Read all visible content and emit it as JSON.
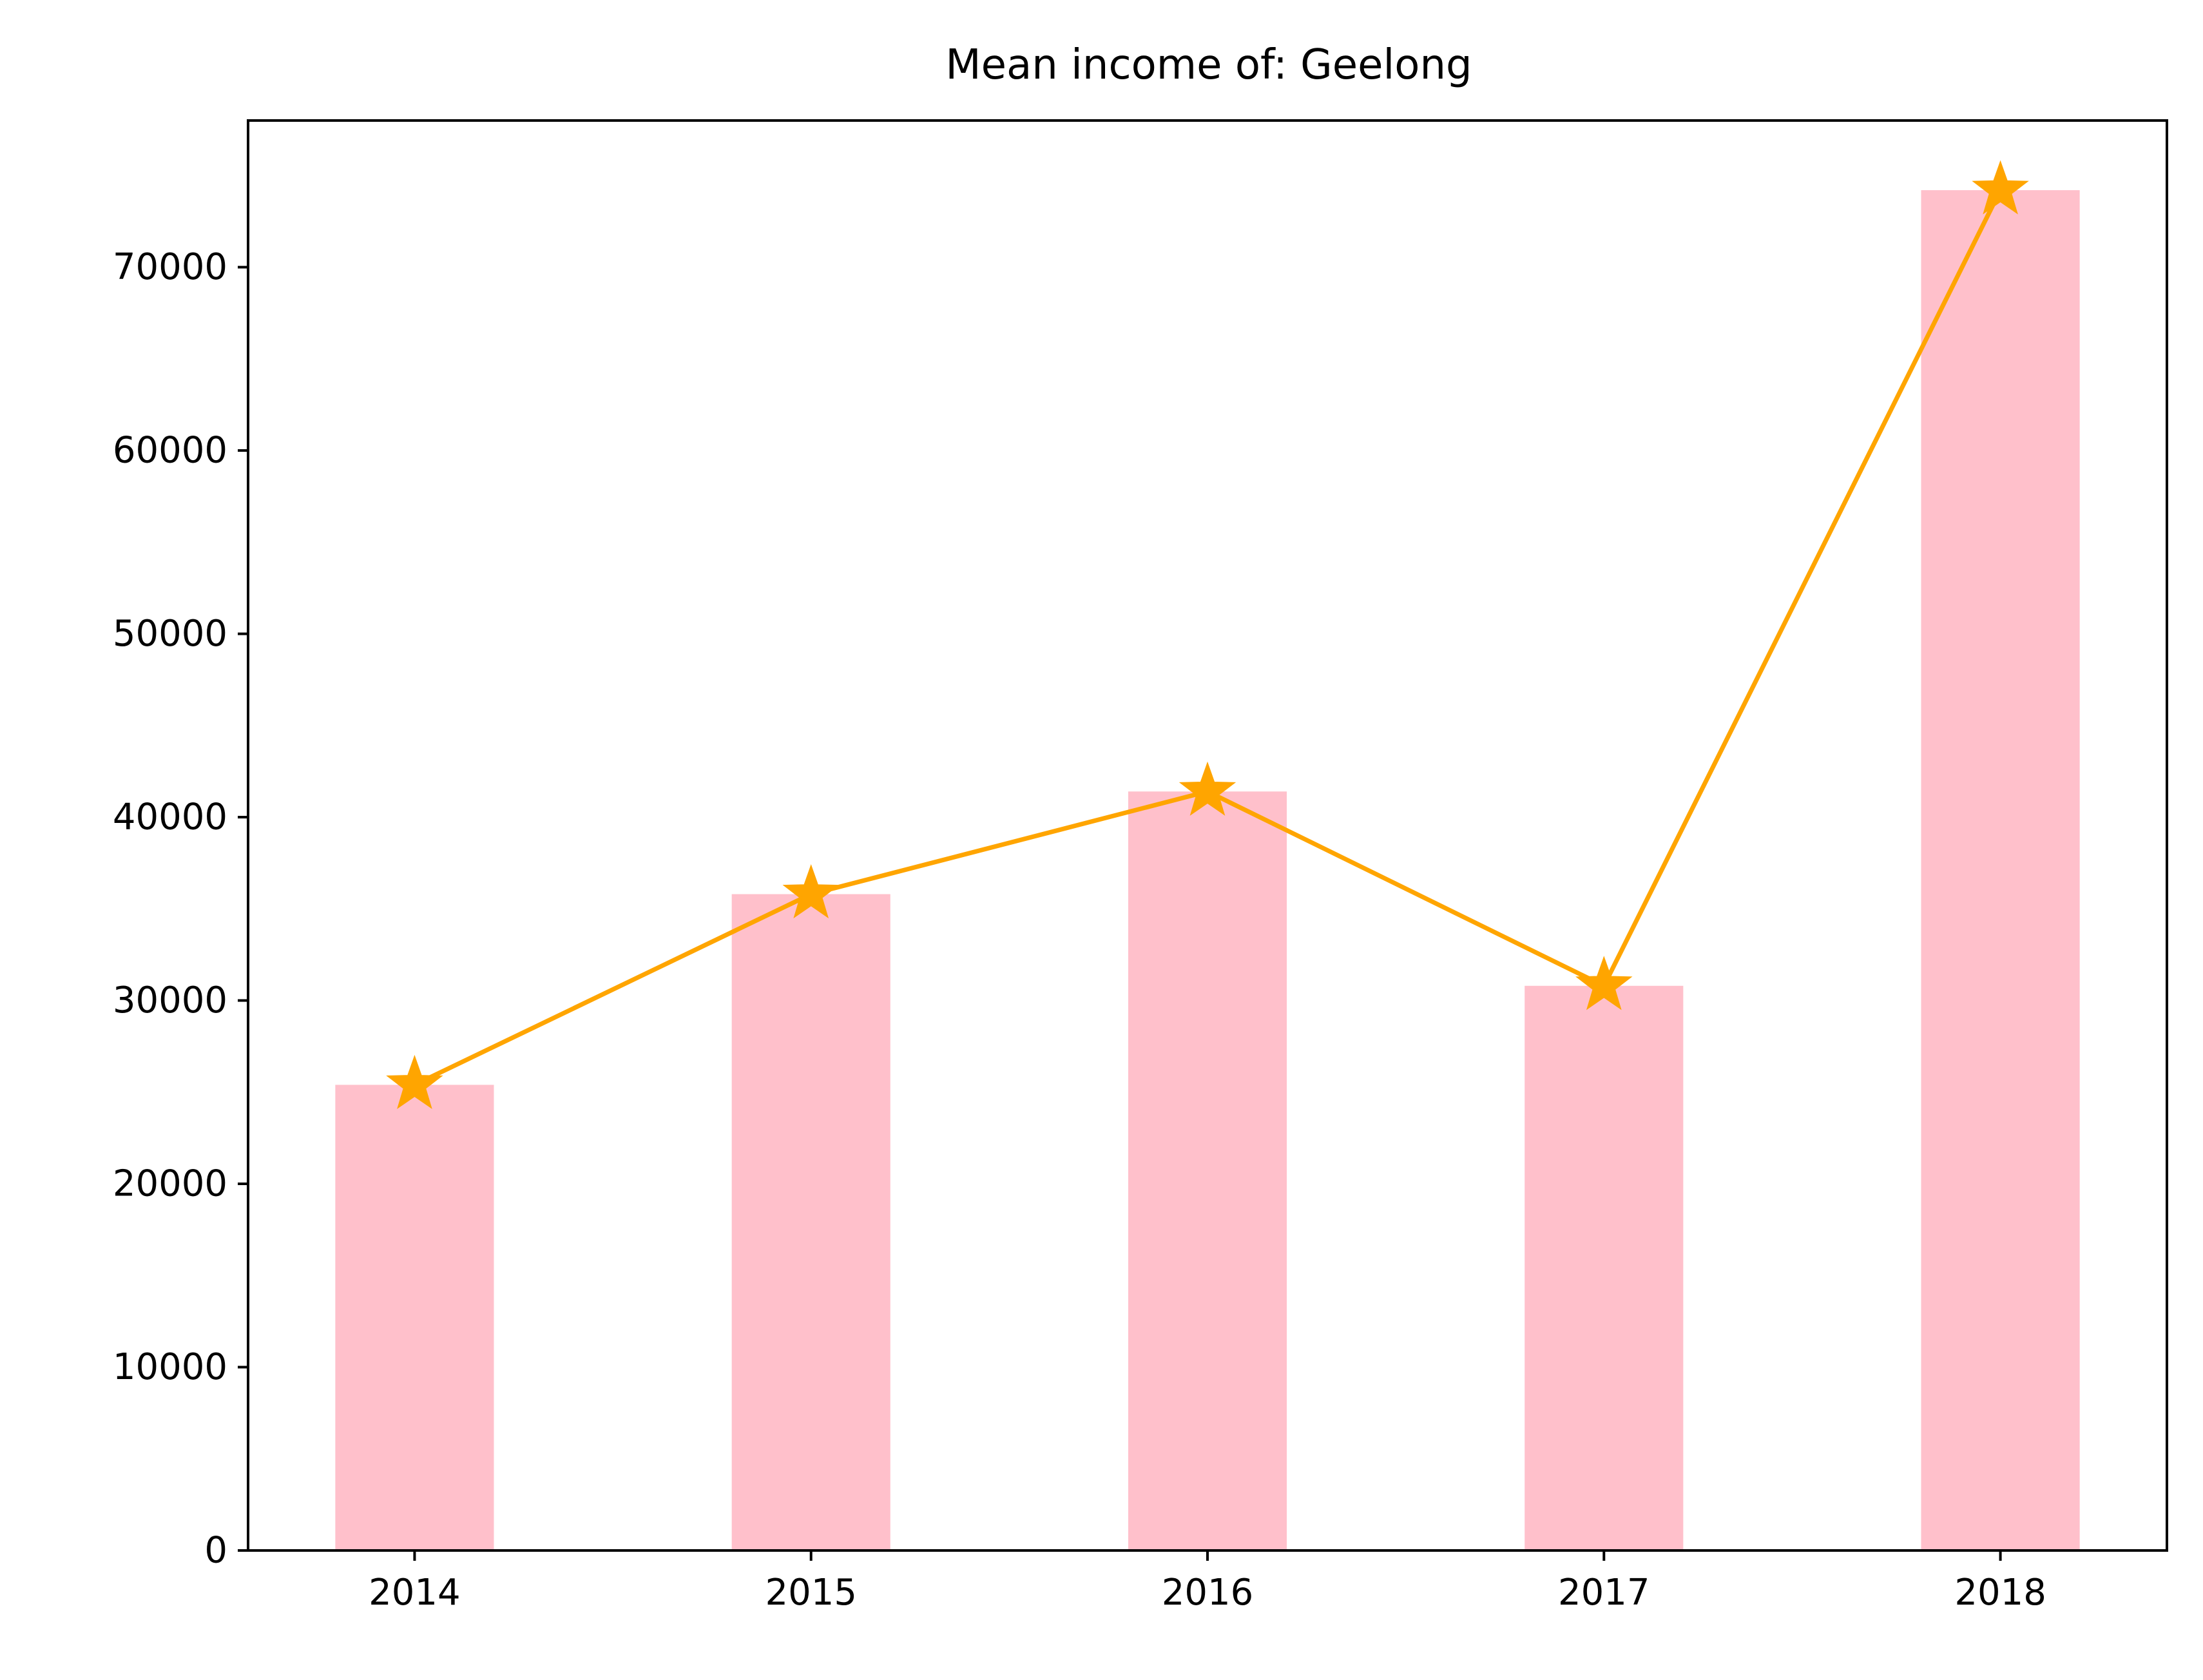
{
  "chart_data": {
    "type": "bar",
    "title": "Mean income of: Geelong",
    "xlabel": "",
    "ylabel": "",
    "categories": [
      "2014",
      "2015",
      "2016",
      "2017",
      "2018"
    ],
    "series": [
      {
        "kind": "bar",
        "values": [
          25400,
          35800,
          41400,
          30800,
          74200
        ]
      },
      {
        "kind": "line",
        "marker": "star",
        "values": [
          25400,
          35800,
          41400,
          30800,
          74200
        ]
      }
    ],
    "yticks": [
      "0",
      "10000",
      "20000",
      "30000",
      "40000",
      "50000",
      "60000",
      "70000"
    ],
    "ylim": [
      0,
      78000
    ],
    "grid": false
  },
  "colors": {
    "bar": "#ffc0cb",
    "line": "#ffa500",
    "axis": "#000000",
    "background": "#ffffff"
  }
}
